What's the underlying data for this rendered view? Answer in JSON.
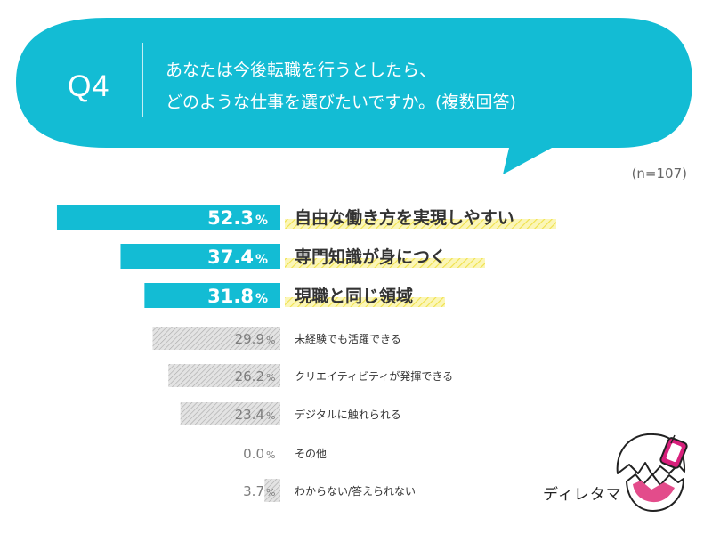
{
  "question": {
    "number": "Q4",
    "line1": "あなたは今後転職を行うとしたら、",
    "line2": "どのような仕事を選びたいですか。(複数回答)"
  },
  "sample": "(n=107)",
  "brand": "ディレタマ",
  "colors": {
    "accent": "#13bcd4",
    "gray_bar": "#cfcfcf",
    "highlight": "#f4ea5a"
  },
  "chart_data": {
    "type": "bar",
    "orientation": "horizontal",
    "unit": "%",
    "categories": [
      "自由な働き方を実現しやすい",
      "専門知識が身につく",
      "現職と同じ領域",
      "未経験でも活躍できる",
      "クリエイティビティが発揮できる",
      "デジタルに触れられる",
      "その他",
      "わからない/答えられない"
    ],
    "values": [
      52.3,
      37.4,
      31.8,
      29.9,
      26.2,
      23.4,
      0.0,
      3.7
    ],
    "value_labels": [
      "52.3",
      "37.4",
      "31.8",
      "29.9",
      "26.2",
      "23.4",
      "0.0",
      "3.7"
    ],
    "highlighted_top": 3
  }
}
